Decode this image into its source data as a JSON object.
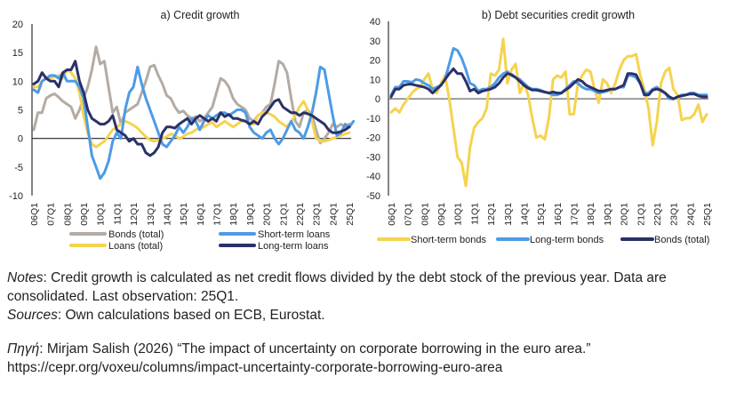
{
  "chart_data": [
    {
      "type": "line",
      "title": "a) Credit growth",
      "xlabel": "",
      "ylabel": "",
      "ylim": [
        -10,
        20
      ],
      "yticks": [
        -10,
        -5,
        0,
        5,
        10,
        15,
        20
      ],
      "xtick_labels": [
        "06Q1",
        "07Q1",
        "08Q1",
        "09Q1",
        "10Q1",
        "11Q1",
        "12Q1",
        "13Q1",
        "14Q1",
        "15Q1",
        "16Q1",
        "17Q1",
        "18Q1",
        "19Q1",
        "20Q1",
        "21Q1",
        "22Q1",
        "23Q1",
        "24Q1",
        "25Q1"
      ],
      "x_start": "06Q1",
      "x_end": "25Q1",
      "legend": [
        {
          "name": "Bonds (total)",
          "color": "#b4aba3"
        },
        {
          "name": "Loans (total)",
          "color": "#f5d34f"
        },
        {
          "name": "Short-term loans",
          "color": "#4d9be6"
        },
        {
          "name": "Long-term loans",
          "color": "#2b3168"
        }
      ],
      "legend_position": "bottom",
      "series": [
        {
          "name": "Bonds (total)",
          "color": "#b4aba3",
          "values": [
            1.5,
            4.5,
            4.5,
            7,
            7.5,
            7.8,
            7.2,
            6.5,
            6,
            5.5,
            3.5,
            5,
            7,
            9,
            12,
            16,
            13,
            13.5,
            9,
            4.5,
            5.5,
            2.5,
            4.5,
            5,
            5.5,
            6,
            8,
            10,
            12.5,
            12.8,
            11,
            9.5,
            7.5,
            7,
            5.5,
            4.5,
            4.8,
            4,
            3.5,
            3.8,
            3,
            3.5,
            4.5,
            5.5,
            8,
            10.5,
            10,
            9,
            7,
            6,
            5.5,
            5,
            3.5,
            3,
            4,
            4.5,
            5.5,
            6,
            9.5,
            13.5,
            13,
            11.5,
            7,
            3,
            2,
            4.5,
            5,
            4,
            1.5,
            -0.8,
            0,
            1,
            2.5,
            2,
            2.5,
            2,
            2.5
          ]
        },
        {
          "name": "Loans (total)",
          "color": "#f5d34f",
          "values": [
            9,
            9,
            10,
            10.5,
            10.5,
            10.8,
            11,
            10.5,
            12,
            11.5,
            10.5,
            8,
            4,
            1,
            -1,
            -1.5,
            -1,
            -0.5,
            0.5,
            1.5,
            2,
            2.5,
            3,
            2.7,
            2.3,
            1.8,
            1,
            0.3,
            -0.3,
            -0.5,
            -0.3,
            0,
            0.3,
            0.8,
            0.5,
            0,
            0.3,
            0.8,
            1,
            1.5,
            1.8,
            2,
            2.5,
            2.8,
            2,
            2.5,
            3,
            2.5,
            2,
            2.5,
            3,
            3.2,
            2.5,
            2.5,
            4,
            4.5,
            4.5,
            4.2,
            3.8,
            3,
            2.5,
            2,
            3,
            4,
            5.5,
            6.5,
            5,
            3,
            0,
            -0.5,
            -0.5,
            -0.3,
            0,
            0.3,
            0.5,
            0.8,
            1
          ]
        },
        {
          "name": "Short-term loans",
          "color": "#4d9be6",
          "values": [
            8.5,
            8,
            10,
            10.5,
            11,
            11,
            10.5,
            11.5,
            10,
            10,
            10,
            9,
            7,
            2,
            -3,
            -5,
            -7,
            -6,
            -4,
            -0.5,
            1,
            0,
            5,
            8,
            9,
            12.5,
            9.5,
            7,
            5,
            3,
            1,
            -1,
            -1.5,
            -0.5,
            0.5,
            2,
            1,
            2,
            3.5,
            3,
            1.5,
            3,
            4,
            3.5,
            4,
            4.5,
            4.5,
            4,
            4.5,
            5,
            5,
            4.5,
            2,
            1,
            0.5,
            0,
            1,
            1.5,
            0,
            -1,
            0,
            1.5,
            3,
            1.5,
            1,
            0,
            2,
            4.5,
            8,
            12.5,
            12,
            8,
            4,
            0.5,
            1,
            2.5,
            2,
            3
          ]
        },
        {
          "name": "Long-term loans",
          "color": "#2b3168",
          "values": [
            9.5,
            10,
            11.5,
            10.5,
            10,
            10,
            9,
            11.5,
            12,
            12,
            13.5,
            10,
            8,
            5,
            3.5,
            3,
            2.5,
            2.5,
            3,
            4,
            1.5,
            1,
            0.5,
            -0.5,
            0,
            -1,
            -1,
            -2.5,
            -3,
            -2.5,
            -1.5,
            1,
            2,
            2,
            1.8,
            2.5,
            3,
            3.5,
            2.5,
            3.5,
            4,
            3.5,
            3,
            3.5,
            3,
            4.5,
            3.8,
            4.2,
            3.5,
            3.5,
            3.2,
            3,
            2.5,
            3,
            2.5,
            3.8,
            4.5,
            5.5,
            6.5,
            6.8,
            5.5,
            5,
            4.5,
            4.5,
            4,
            4.5,
            4.3,
            4,
            3.5,
            3,
            2.5,
            1.5,
            1,
            1,
            1.2,
            1.5,
            2
          ]
        }
      ]
    },
    {
      "type": "line",
      "title": "b) Debt securities credit growth",
      "xlabel": "",
      "ylabel": "",
      "ylim": [
        -50,
        40
      ],
      "yticks": [
        -50,
        -40,
        -30,
        -20,
        -10,
        0,
        10,
        20,
        30,
        40
      ],
      "xtick_labels": [
        "06Q1",
        "07Q1",
        "08Q1",
        "09Q1",
        "10Q1",
        "11Q1",
        "12Q1",
        "13Q1",
        "14Q1",
        "15Q1",
        "16Q1",
        "17Q1",
        "18Q1",
        "19Q1",
        "20Q1",
        "21Q1",
        "22Q1",
        "23Q1",
        "24Q1",
        "25Q1"
      ],
      "x_start": "06Q1",
      "x_end": "25Q1",
      "legend": [
        {
          "name": "Short-term bonds",
          "color": "#f5d34f"
        },
        {
          "name": "Long-term bonds",
          "color": "#4d9be6"
        },
        {
          "name": "Bonds (total)",
          "color": "#2b3168"
        }
      ],
      "legend_position": "bottom",
      "series": [
        {
          "name": "Short-term bonds",
          "color": "#f5d34f",
          "values": [
            -7,
            -5,
            -7,
            -3,
            0,
            3,
            5,
            6,
            10,
            13,
            5,
            3,
            8,
            12,
            0,
            -15,
            -30,
            -33,
            -45,
            -25,
            -15,
            -12,
            -10,
            -5,
            13,
            12,
            15,
            31,
            8,
            15,
            18,
            3,
            8,
            2,
            -10,
            -20,
            -19,
            -21,
            -10,
            10,
            12,
            11,
            14,
            -8,
            -8,
            8,
            12,
            15,
            14,
            5,
            -2,
            10,
            8,
            3,
            8,
            15,
            20,
            22,
            22,
            23,
            12,
            5,
            -5,
            -24,
            -12,
            8,
            14,
            16,
            5,
            2,
            -11,
            -10,
            -10,
            -8,
            -3,
            -12,
            -8
          ]
        },
        {
          "name": "Long-term bonds",
          "color": "#4d9be6",
          "values": [
            2,
            6,
            6,
            9,
            9,
            8.5,
            10,
            9.5,
            8,
            7,
            5,
            6,
            7,
            10,
            18,
            26,
            25,
            21,
            15,
            8,
            7,
            4,
            5,
            5,
            6,
            8,
            11,
            13,
            14,
            12,
            11,
            10,
            8,
            6,
            5,
            5,
            4.5,
            3.5,
            3,
            2,
            2,
            3,
            5,
            7,
            9,
            8,
            6,
            5,
            5,
            4,
            3,
            3.5,
            4,
            5,
            5,
            6,
            6,
            12,
            12,
            11,
            8,
            3,
            3,
            5,
            6,
            4,
            3,
            0,
            0,
            1,
            2,
            2,
            3,
            3,
            2,
            2,
            2
          ]
        },
        {
          "name": "Bonds (total)",
          "color": "#2b3168",
          "values": [
            1,
            5,
            5,
            7,
            7.5,
            7.5,
            7,
            6.5,
            6,
            5,
            3,
            5,
            7,
            10,
            13,
            15.5,
            13,
            13,
            9,
            4,
            5,
            3,
            4,
            4.5,
            5,
            6,
            8,
            11,
            13,
            12.5,
            11,
            9,
            7,
            5.5,
            4.5,
            4.5,
            4,
            3.5,
            3,
            3.5,
            3,
            3,
            4.5,
            6,
            8,
            10,
            9,
            7,
            6,
            5,
            4,
            4,
            4.5,
            5,
            5,
            6,
            7,
            13,
            13,
            12.5,
            8,
            2,
            2,
            4.5,
            5,
            4.5,
            3,
            1,
            0,
            1,
            1.5,
            2,
            2.5,
            2.5,
            1.5,
            1,
            1
          ]
        }
      ]
    }
  ],
  "notes": {
    "label": "Notes",
    "text": ": Credit growth is calculated as net credit flows divided by the debt stock of the previous year. Data are consolidated. Last observation: 25Q1."
  },
  "sources": {
    "label": "Sources",
    "text": ": Own calculations based on ECB, Eurostat."
  },
  "citation": {
    "label": "Πηγή",
    "text": ": Mirjam Salish (2026) “The impact of uncertainty on corporate borrowing in the euro area.”",
    "url": "https://cepr.org/voxeu/columns/impact-uncertainty-corporate-borrowing-euro-area"
  }
}
